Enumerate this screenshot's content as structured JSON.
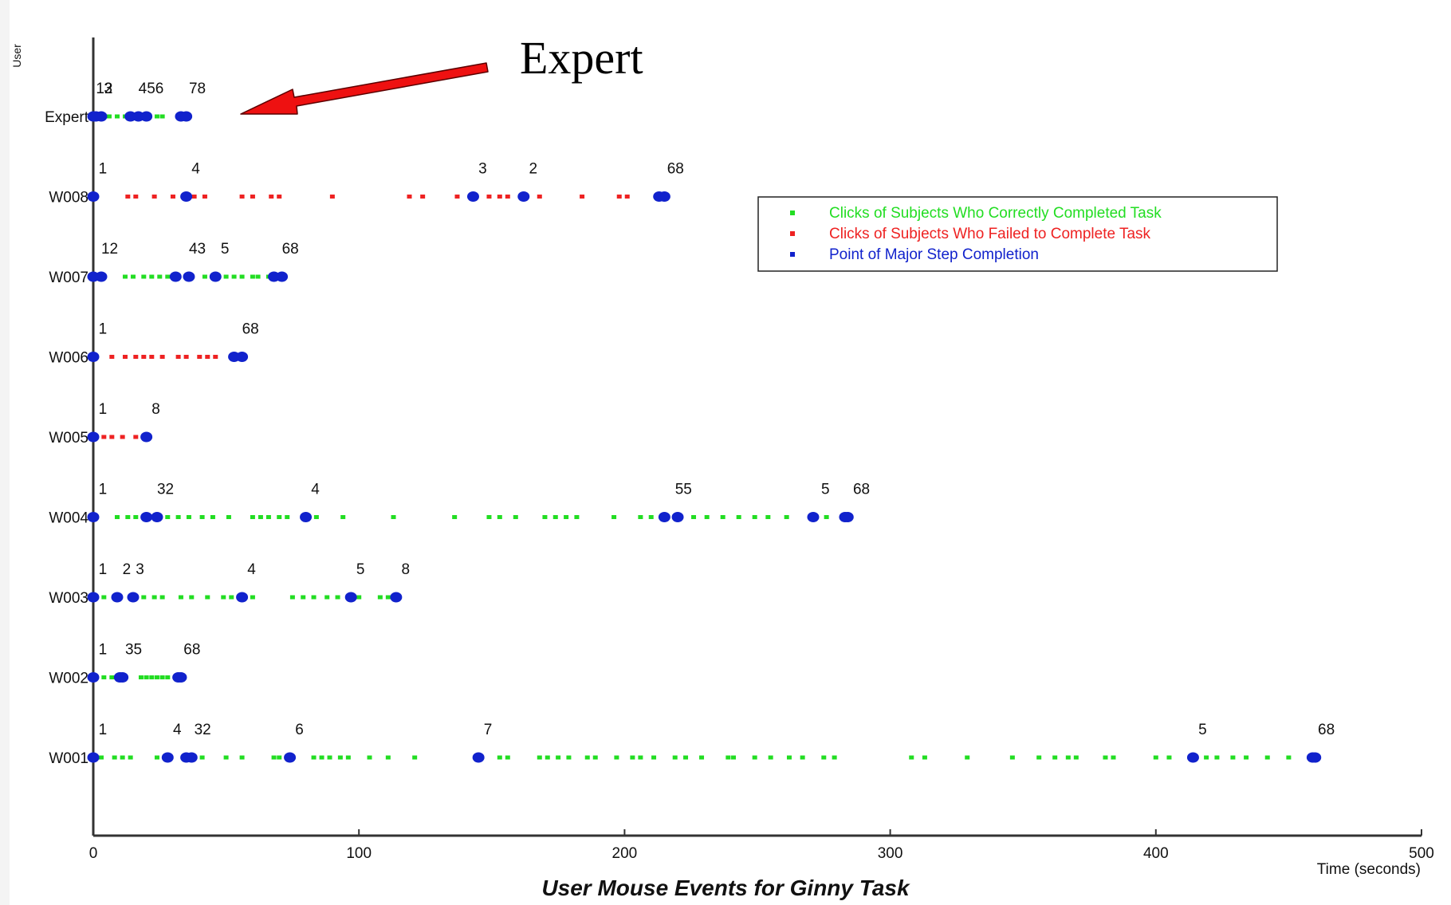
{
  "chart_data": {
    "type": "scatter",
    "title": "User Mouse Events for Ginny Task",
    "xlabel": "Time (seconds)",
    "ylabel": "User",
    "xlim": [
      0,
      500
    ],
    "x_ticks": [
      0,
      100,
      200,
      300,
      400,
      500
    ],
    "grid": false,
    "legend_position": "top-right",
    "legend": [
      {
        "label": "Clicks of Subjects Who Correctly Completed Task",
        "color": "#22dd22"
      },
      {
        "label": "Clicks of Subjects Who Failed to Complete Task",
        "color": "#ee2222"
      },
      {
        "label": "Point of Major Step Completion",
        "color": "#1122cc"
      }
    ],
    "annotation": {
      "text": "Expert",
      "arrow_color": "#ee1111",
      "points_to": "Expert"
    },
    "rows": [
      {
        "user": "Expert",
        "outcome": "correct",
        "clicks": [
          0,
          3,
          6,
          9,
          12,
          15,
          18,
          21,
          24,
          26,
          33,
          35
        ],
        "steps": [
          {
            "label": "1",
            "x": 0
          },
          {
            "label": "2",
            "x": 1
          },
          {
            "label": "3",
            "x": 3
          },
          {
            "label": "4",
            "x": 14
          },
          {
            "label": "5",
            "x": 17
          },
          {
            "label": "6",
            "x": 20
          },
          {
            "label": "7",
            "x": 33
          },
          {
            "label": "8",
            "x": 35
          }
        ],
        "step_labels": [
          {
            "text": "12",
            "x": 1
          },
          {
            "text": "3",
            "x": 4
          },
          {
            "text": "456",
            "x": 17
          },
          {
            "text": "78",
            "x": 36
          }
        ]
      },
      {
        "user": "W008",
        "outcome": "failed",
        "clicks": [
          13,
          16,
          23,
          30,
          38,
          42,
          56,
          60,
          67,
          70,
          90,
          119,
          124,
          137,
          149,
          153,
          156,
          168,
          184,
          198,
          201
        ],
        "steps": [
          {
            "label": "1",
            "x": 0
          },
          {
            "label": "4",
            "x": 35
          },
          {
            "label": "3",
            "x": 143
          },
          {
            "label": "2",
            "x": 162
          },
          {
            "label": "6",
            "x": 213
          },
          {
            "label": "8",
            "x": 215
          }
        ],
        "step_labels": [
          {
            "text": "1",
            "x": 2
          },
          {
            "text": "4",
            "x": 37
          },
          {
            "text": "3",
            "x": 145
          },
          {
            "text": "2",
            "x": 164
          },
          {
            "text": "68",
            "x": 216
          }
        ]
      },
      {
        "user": "W007",
        "outcome": "correct",
        "clicks": [
          12,
          15,
          19,
          22,
          25,
          28,
          42,
          50,
          53,
          56,
          60,
          62,
          66
        ],
        "steps": [
          {
            "label": "1",
            "x": 0
          },
          {
            "label": "2",
            "x": 3
          },
          {
            "label": "4",
            "x": 31
          },
          {
            "label": "3",
            "x": 36
          },
          {
            "label": "5",
            "x": 46
          },
          {
            "label": "6",
            "x": 68
          },
          {
            "label": "8",
            "x": 71
          }
        ],
        "step_labels": [
          {
            "text": "12",
            "x": 3
          },
          {
            "text": "43",
            "x": 36
          },
          {
            "text": "5",
            "x": 48
          },
          {
            "text": "68",
            "x": 71
          }
        ]
      },
      {
        "user": "W006",
        "outcome": "failed",
        "clicks": [
          7,
          12,
          16,
          19,
          22,
          26,
          32,
          35,
          40,
          43,
          46
        ],
        "steps": [
          {
            "label": "1",
            "x": 0
          },
          {
            "label": "6",
            "x": 53
          },
          {
            "label": "8",
            "x": 56
          }
        ],
        "step_labels": [
          {
            "text": "1",
            "x": 2
          },
          {
            "text": "68",
            "x": 56
          }
        ]
      },
      {
        "user": "W005",
        "outcome": "failed",
        "clicks": [
          4,
          7,
          11,
          16
        ],
        "steps": [
          {
            "label": "1",
            "x": 0
          },
          {
            "label": "8",
            "x": 20
          }
        ],
        "step_labels": [
          {
            "text": "1",
            "x": 2
          },
          {
            "text": "8",
            "x": 22
          }
        ]
      },
      {
        "user": "W004",
        "outcome": "correct",
        "clicks": [
          9,
          13,
          16,
          28,
          32,
          36,
          41,
          45,
          51,
          60,
          63,
          66,
          70,
          73,
          84,
          94,
          113,
          136,
          149,
          153,
          159,
          170,
          174,
          178,
          182,
          196,
          206,
          210,
          226,
          231,
          237,
          243,
          249,
          254,
          261,
          270,
          276
        ],
        "steps": [
          {
            "label": "1",
            "x": 0
          },
          {
            "label": "3",
            "x": 20
          },
          {
            "label": "2",
            "x": 24
          },
          {
            "label": "4",
            "x": 80
          },
          {
            "label": "5",
            "x": 215
          },
          {
            "label": "5",
            "x": 220
          },
          {
            "label": "5",
            "x": 271
          },
          {
            "label": "6",
            "x": 283
          },
          {
            "label": "8",
            "x": 284
          }
        ],
        "step_labels": [
          {
            "text": "1",
            "x": 2
          },
          {
            "text": "32",
            "x": 24
          },
          {
            "text": "4",
            "x": 82
          },
          {
            "text": "55",
            "x": 219
          },
          {
            "text": "5",
            "x": 274
          },
          {
            "text": "68",
            "x": 286
          }
        ]
      },
      {
        "user": "W003",
        "outcome": "correct",
        "clicks": [
          4,
          19,
          23,
          26,
          33,
          37,
          43,
          49,
          52,
          60,
          75,
          79,
          83,
          88,
          92,
          100,
          108,
          111
        ],
        "steps": [
          {
            "label": "1",
            "x": 0
          },
          {
            "label": "2",
            "x": 9
          },
          {
            "label": "3",
            "x": 15
          },
          {
            "label": "4",
            "x": 56
          },
          {
            "label": "5",
            "x": 97
          },
          {
            "label": "8",
            "x": 114
          }
        ],
        "step_labels": [
          {
            "text": "1",
            "x": 2
          },
          {
            "text": "2",
            "x": 11
          },
          {
            "text": "3",
            "x": 16
          },
          {
            "text": "4",
            "x": 58
          },
          {
            "text": "5",
            "x": 99
          },
          {
            "text": "8",
            "x": 116
          }
        ]
      },
      {
        "user": "W002",
        "outcome": "correct",
        "clicks": [
          4,
          7,
          18,
          20,
          22,
          24,
          26,
          28
        ],
        "steps": [
          {
            "label": "1",
            "x": 0
          },
          {
            "label": "3",
            "x": 10
          },
          {
            "label": "5",
            "x": 11
          },
          {
            "label": "6",
            "x": 32
          },
          {
            "label": "8",
            "x": 33
          }
        ],
        "step_labels": [
          {
            "text": "1",
            "x": 2
          },
          {
            "text": "35",
            "x": 12
          },
          {
            "text": "68",
            "x": 34
          }
        ]
      },
      {
        "user": "W001",
        "outcome": "correct",
        "clicks": [
          3,
          8,
          11,
          14,
          24,
          41,
          50,
          56,
          68,
          70,
          83,
          86,
          89,
          93,
          96,
          104,
          111,
          121,
          153,
          156,
          168,
          171,
          175,
          179,
          186,
          189,
          197,
          203,
          206,
          211,
          219,
          223,
          229,
          239,
          241,
          249,
          255,
          262,
          267,
          275,
          279,
          308,
          313,
          329,
          346,
          356,
          362,
          367,
          370,
          381,
          384,
          400,
          405,
          419,
          423,
          429,
          434,
          442,
          450
        ],
        "steps": [
          {
            "label": "1",
            "x": 0
          },
          {
            "label": "4",
            "x": 28
          },
          {
            "label": "3",
            "x": 35
          },
          {
            "label": "2",
            "x": 37
          },
          {
            "label": "6",
            "x": 74
          },
          {
            "label": "7",
            "x": 145
          },
          {
            "label": "5",
            "x": 414
          },
          {
            "label": "6",
            "x": 459
          },
          {
            "label": "8",
            "x": 460
          }
        ],
        "step_labels": [
          {
            "text": "1",
            "x": 2
          },
          {
            "text": "4",
            "x": 30
          },
          {
            "text": "32",
            "x": 38
          },
          {
            "text": "6",
            "x": 76
          },
          {
            "text": "7",
            "x": 147
          },
          {
            "text": "5",
            "x": 416
          },
          {
            "text": "68",
            "x": 461
          }
        ]
      }
    ]
  }
}
